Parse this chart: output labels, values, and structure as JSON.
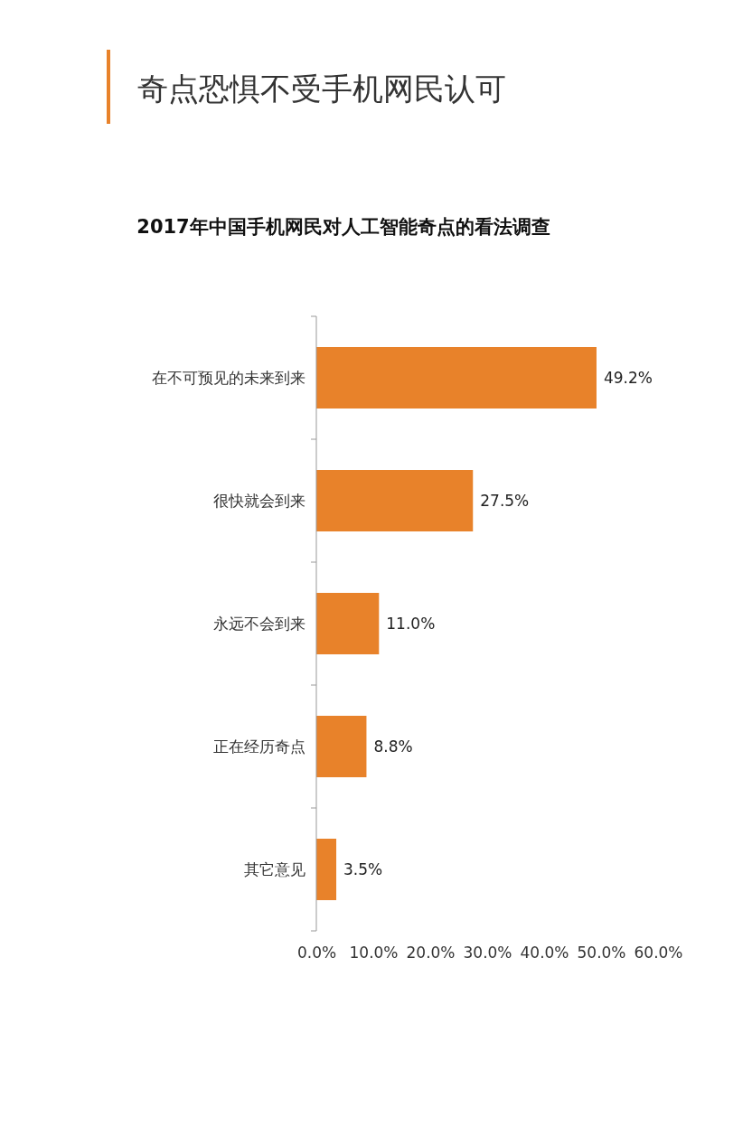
{
  "chart_data": {
    "type": "bar",
    "orientation": "horizontal",
    "title": "奇点恐惧不受手机网民认可",
    "subtitle": "2017年中国手机网民对人工智能奇点的看法调查",
    "categories": [
      "在不可预见的未来到来",
      "很快就会到来",
      "永远不会到来",
      "正在经历奇点",
      "其它意见"
    ],
    "values": [
      49.2,
      27.5,
      11.0,
      8.8,
      3.5
    ],
    "value_labels": [
      "49.2%",
      "27.5%",
      "11.0%",
      "8.8%",
      "3.5%"
    ],
    "color": "#e8822a",
    "xlim": [
      0,
      60
    ],
    "xticks": [
      {
        "value": 0,
        "label": "0.0%"
      },
      {
        "value": 10,
        "label": "10.0%"
      },
      {
        "value": 20,
        "label": "20.0%"
      },
      {
        "value": 30,
        "label": "30.0%"
      },
      {
        "value": 40,
        "label": "40.0%"
      },
      {
        "value": 50,
        "label": "50.0%"
      },
      {
        "value": 60,
        "label": "60.0%"
      }
    ],
    "tick_labels": true
  }
}
